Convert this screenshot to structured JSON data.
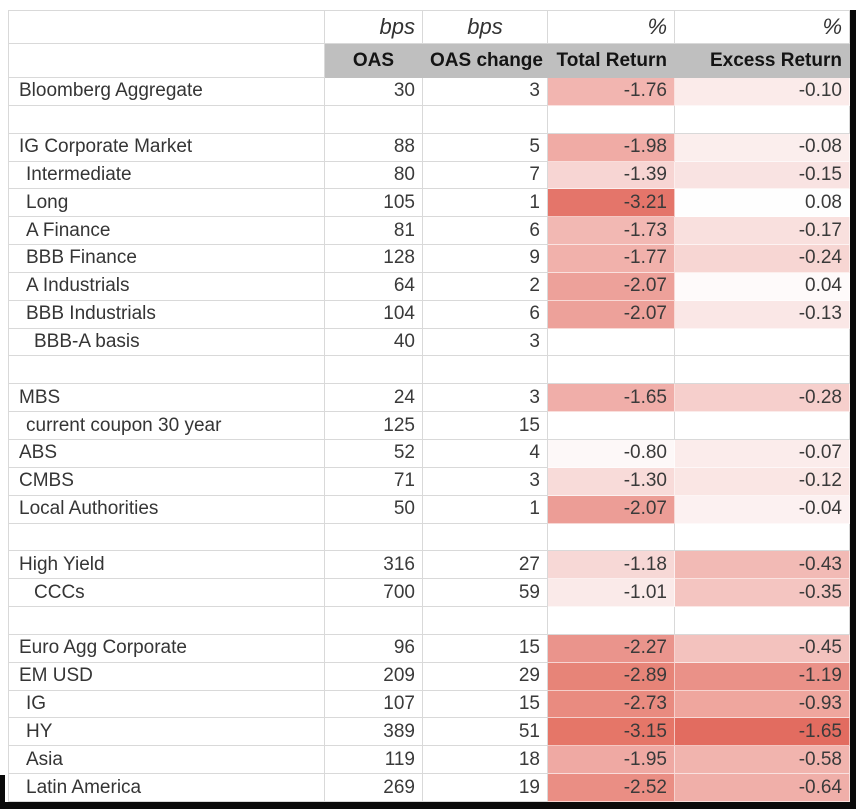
{
  "columns": {
    "units": [
      "",
      "bps",
      "bps",
      "%",
      "%"
    ],
    "names": [
      "",
      "OAS",
      "OAS change",
      "Total Return",
      "Excess Return"
    ]
  },
  "colors": {
    "header_bg": "#bfbfbf",
    "gridline": "#d9d9d9",
    "border_black": "#0a0a0a",
    "scale_red_dark": "#e4756a",
    "scale_white": "#ffffff"
  },
  "rows": [
    {
      "type": "data",
      "label": "Bloomberg Aggregate",
      "indent": 0,
      "oas": "30",
      "chg": "3",
      "tr": "-1.76",
      "er": "-0.10",
      "tr_bg": "#F2B5B0",
      "er_bg": "#FBEBEA"
    },
    {
      "type": "blank"
    },
    {
      "type": "data",
      "label": "IG Corporate Market",
      "indent": 0,
      "oas": "88",
      "chg": "5",
      "tr": "-1.98",
      "er": "-0.08",
      "tr_bg": "#F0ABA5",
      "er_bg": "#FBEEED"
    },
    {
      "type": "data",
      "label": "Intermediate",
      "indent": 1,
      "oas": "80",
      "chg": "7",
      "tr": "-1.39",
      "er": "-0.15",
      "tr_bg": "#F7D5D3",
      "er_bg": "#F9E3E2"
    },
    {
      "type": "data",
      "label": "Long",
      "indent": 1,
      "oas": "105",
      "chg": "1",
      "tr": "-3.21",
      "er": "0.08",
      "tr_bg": "#E4756A",
      "er_bg": "#FEFEFE"
    },
    {
      "type": "data",
      "label": "A Finance",
      "indent": 1,
      "oas": "81",
      "chg": "6",
      "tr": "-1.73",
      "er": "-0.17",
      "tr_bg": "#F2B8B3",
      "er_bg": "#F9E0DE"
    },
    {
      "type": "data",
      "label": "BBB Finance",
      "indent": 1,
      "oas": "128",
      "chg": "9",
      "tr": "-1.77",
      "er": "-0.24",
      "tr_bg": "#F1B1AB",
      "er_bg": "#F7D6D3"
    },
    {
      "type": "data",
      "label": "A Industrials",
      "indent": 1,
      "oas": "64",
      "chg": "2",
      "tr": "-2.07",
      "er": "0.04",
      "tr_bg": "#EDA19A",
      "er_bg": "#FEFAFA"
    },
    {
      "type": "data",
      "label": "BBB Industrials",
      "indent": 1,
      "oas": "104",
      "chg": "6",
      "tr": "-2.07",
      "er": "-0.13",
      "tr_bg": "#EDA19A",
      "er_bg": "#FAE7E6"
    },
    {
      "type": "data",
      "label": "BBB-A basis",
      "indent": 2,
      "oas": "40",
      "chg": "3",
      "tr": "",
      "er": "",
      "tr_bg": null,
      "er_bg": null
    },
    {
      "type": "blank"
    },
    {
      "type": "data",
      "label": "MBS",
      "indent": 0,
      "oas": "24",
      "chg": "3",
      "tr": "-1.65",
      "er": "-0.28",
      "tr_bg": "#F0AEA9",
      "er_bg": "#F6CFCC"
    },
    {
      "type": "data",
      "label": "current coupon 30 year",
      "indent": 1,
      "oas": "125",
      "chg": "15",
      "tr": "",
      "er": "",
      "tr_bg": null,
      "er_bg": null
    },
    {
      "type": "data",
      "label": "ABS",
      "indent": 0,
      "oas": "52",
      "chg": "4",
      "tr": "-0.80",
      "er": "-0.07",
      "tr_bg": "#FDF8F8",
      "er_bg": "#FBECEB"
    },
    {
      "type": "data",
      "label": "CMBS",
      "indent": 0,
      "oas": "71",
      "chg": "3",
      "tr": "-1.30",
      "er": "-0.12",
      "tr_bg": "#F8DBD9",
      "er_bg": "#FAE6E4"
    },
    {
      "type": "data",
      "label": "Local Authorities",
      "indent": 0,
      "oas": "50",
      "chg": "1",
      "tr": "-2.07",
      "er": "-0.04",
      "tr_bg": "#EC9D96",
      "er_bg": "#FCF1F1"
    },
    {
      "type": "blank"
    },
    {
      "type": "data",
      "label": "High Yield",
      "indent": 0,
      "oas": "316",
      "chg": "27",
      "tr": "-1.18",
      "er": "-0.43",
      "tr_bg": "#F7D8D6",
      "er_bg": "#F2BAB5"
    },
    {
      "type": "data",
      "label": "CCCs",
      "indent": 2,
      "oas": "700",
      "chg": "59",
      "tr": "-1.01",
      "er": "-0.35",
      "tr_bg": "#FAEAE9",
      "er_bg": "#F4C5C1"
    },
    {
      "type": "blank"
    },
    {
      "type": "data",
      "label": "Euro Agg Corporate",
      "indent": 0,
      "oas": "96",
      "chg": "15",
      "tr": "-2.27",
      "er": "-0.45",
      "tr_bg": "#EA948C",
      "er_bg": "#F3C2BE"
    },
    {
      "type": "data",
      "label": "EM USD",
      "indent": 0,
      "oas": "209",
      "chg": "29",
      "tr": "-2.89",
      "er": "-1.19",
      "tr_bg": "#E78478",
      "er_bg": "#EA9188"
    },
    {
      "type": "data",
      "label": "IG",
      "indent": 1,
      "oas": "107",
      "chg": "15",
      "tr": "-2.73",
      "er": "-0.93",
      "tr_bg": "#E98B80",
      "er_bg": "#EFA69E"
    },
    {
      "type": "data",
      "label": "HY",
      "indent": 1,
      "oas": "389",
      "chg": "51",
      "tr": "-3.15",
      "er": "-1.65",
      "tr_bg": "#E57668",
      "er_bg": "#E26C60"
    },
    {
      "type": "data",
      "label": "Asia",
      "indent": 1,
      "oas": "119",
      "chg": "18",
      "tr": "-1.95",
      "er": "-0.58",
      "tr_bg": "#EFA9A3",
      "er_bg": "#F1B4AE"
    },
    {
      "type": "data",
      "label": "Latin America",
      "indent": 1,
      "oas": "269",
      "chg": "19",
      "tr": "-2.52",
      "er": "-0.64",
      "tr_bg": "#EA8E84",
      "er_bg": "#F0AFA9"
    }
  ]
}
